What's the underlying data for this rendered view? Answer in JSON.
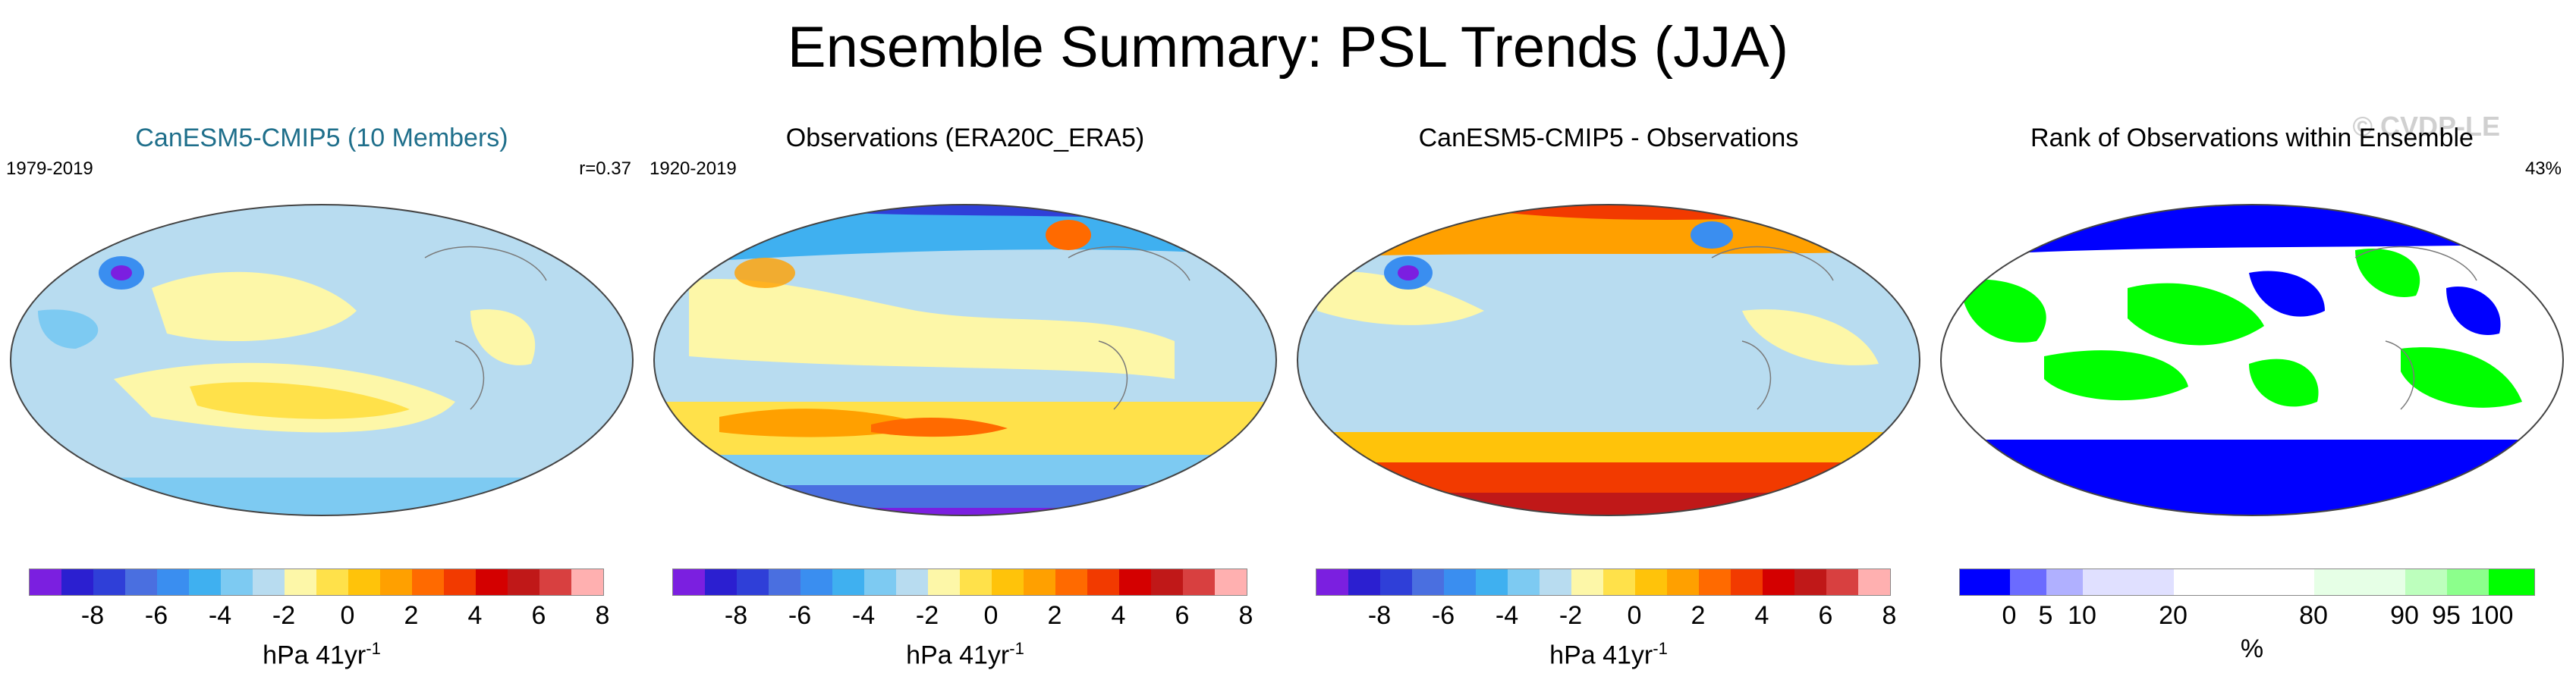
{
  "title": "Ensemble Summary: PSL Trends (JJA)",
  "watermark": "© CVDP-LE",
  "trend_scale": {
    "colors": [
      "#7b1fe0",
      "#2b1fd0",
      "#2f3fd8",
      "#4a6fe0",
      "#3a8ef0",
      "#3fb0f0",
      "#7dcaf2",
      "#b8dcf0",
      "#fdf7a8",
      "#ffe14a",
      "#ffc30a",
      "#ffa000",
      "#ff6a00",
      "#f23a00",
      "#d40000",
      "#c01818",
      "#d84040",
      "#ffb0b0"
    ],
    "ticks": [
      "-8",
      "-6",
      "-4",
      "-2",
      "0",
      "2",
      "4",
      "6",
      "8"
    ],
    "unit": "hPa 41yr",
    "unit_exp": "-1"
  },
  "rank_scale": {
    "colors": [
      "#0000ff",
      "#6b6bff",
      "#b0b0ff",
      "#e0e0ff",
      "#ffffff",
      "#ffffff",
      "#e6ffe6",
      "#bdffbd",
      "#8cff8c",
      "#00ff00"
    ],
    "ticks": [
      "0",
      "5",
      "10",
      "20",
      "80",
      "90",
      "95",
      "100"
    ],
    "unit": "%"
  },
  "panels": [
    {
      "title": "CanESM5-CMIP5 (10 Members)",
      "left": "1979-2019",
      "right": "r=0.37",
      "scale": "trend"
    },
    {
      "title": "Observations (ERA20C_ERA5)",
      "left": "1920-2019",
      "right": "",
      "scale": "trend"
    },
    {
      "title": "CanESM5-CMIP5 - Observations",
      "left": "",
      "right": "",
      "scale": "trend"
    },
    {
      "title": "Rank of Observations within Ensemble",
      "left": "",
      "right": "43%",
      "scale": "rank"
    }
  ]
}
